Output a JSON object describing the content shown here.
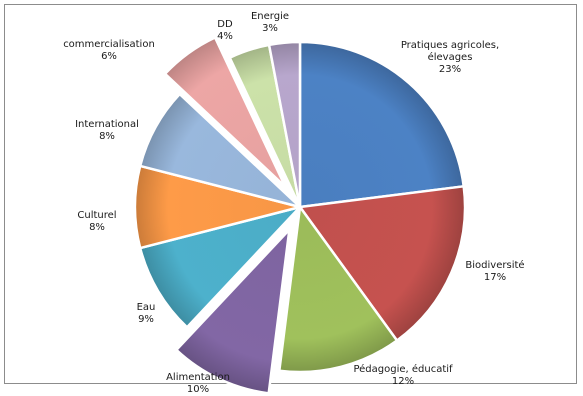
{
  "chart_data": {
    "type": "pie",
    "title": "",
    "slices": [
      {
        "label": "Pratiques agricoles, élevages",
        "display_lines": [
          "Pratiques agricoles,",
          "élevages"
        ],
        "value": 23,
        "percent_text": "23%",
        "color": "#4a7ebf",
        "exploded": false
      },
      {
        "label": "Biodiversité",
        "display_lines": [
          "Biodiversité"
        ],
        "value": 17,
        "percent_text": "17%",
        "color": "#c0504d",
        "exploded": false
      },
      {
        "label": "Pédagogie, éducatif",
        "display_lines": [
          "Pédagogie, éducatif"
        ],
        "value": 12,
        "percent_text": "12%",
        "color": "#9bbb59",
        "exploded": false
      },
      {
        "label": "Alimentation",
        "display_lines": [
          "Alimentation"
        ],
        "value": 10,
        "percent_text": "10%",
        "color": "#7e64a0",
        "exploded": true
      },
      {
        "label": "Eau",
        "display_lines": [
          "Eau"
        ],
        "value": 9,
        "percent_text": "9%",
        "color": "#4bacc6",
        "exploded": false
      },
      {
        "label": "Culturel",
        "display_lines": [
          "Culturel"
        ],
        "value": 8,
        "percent_text": "8%",
        "color": "#f79646",
        "exploded": false
      },
      {
        "label": "International",
        "display_lines": [
          "International"
        ],
        "value": 8,
        "percent_text": "8%",
        "color": "#95b3d7",
        "exploded": false
      },
      {
        "label": "commercialisation",
        "display_lines": [
          "commercialisation"
        ],
        "value": 6,
        "percent_text": "6%",
        "color": "#e6a1a0",
        "exploded": true
      },
      {
        "label": "DD",
        "display_lines": [
          "DD"
        ],
        "value": 4,
        "percent_text": "4%",
        "color": "#c6dba4",
        "exploded": false
      },
      {
        "label": "Energie",
        "display_lines": [
          "Energie"
        ],
        "value": 3,
        "percent_text": "3%",
        "color": "#b3a2c7",
        "exploded": false
      }
    ]
  }
}
